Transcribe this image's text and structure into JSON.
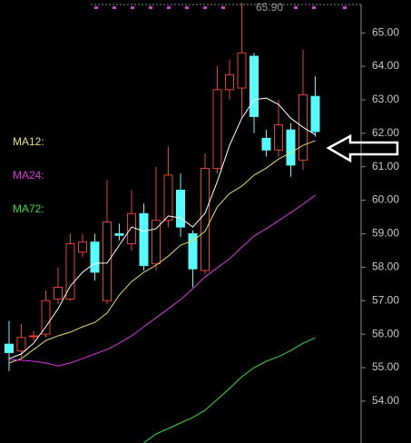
{
  "chart_data": {
    "type": "candlestick",
    "open": [
      55.7,
      55.5,
      55.95,
      56.0,
      57.05,
      57.05,
      58.45,
      58.75,
      57.0,
      59.0,
      58.7,
      59.6,
      58.1,
      59.4,
      60.3,
      59.0,
      57.9,
      60.95,
      63.3,
      63.35,
      64.3,
      61.85,
      61.5,
      62.1,
      61.2,
      63.1
    ],
    "high": [
      56.4,
      56.3,
      56.1,
      57.3,
      58.0,
      59.0,
      59.0,
      59.0,
      60.6,
      59.3,
      60.3,
      59.9,
      61.0,
      61.6,
      60.8,
      59.1,
      61.4,
      64.0,
      64.2,
      65.9,
      64.4,
      62.1,
      63.0,
      62.3,
      64.5,
      63.7
    ],
    "low": [
      54.9,
      55.3,
      55.8,
      55.9,
      56.9,
      57.0,
      58.3,
      57.6,
      56.9,
      58.8,
      58.5,
      57.9,
      57.9,
      59.2,
      58.9,
      57.4,
      57.8,
      60.8,
      63.0,
      62.5,
      62.0,
      61.3,
      61.3,
      60.7,
      60.9,
      61.9
    ],
    "close": [
      55.45,
      55.9,
      55.95,
      57.0,
      57.4,
      58.7,
      58.75,
      57.85,
      59.35,
      58.95,
      59.6,
      58.05,
      59.4,
      60.75,
      59.2,
      57.95,
      60.95,
      63.3,
      63.75,
      64.4,
      62.5,
      61.5,
      62.25,
      61.05,
      63.15,
      62.05
    ],
    "up_color": "#e8422a",
    "down_color": "#54fcfc",
    "series": [
      {
        "color": "#ffffff",
        "values": [
          55.27,
          55.41,
          55.73,
          56.22,
          56.76,
          57.44,
          57.85,
          58.12,
          58.12,
          58.66,
          59.2,
          59.07,
          59.15,
          59.53,
          59.47,
          59.2,
          59.61,
          60.56,
          61.64,
          62.45,
          63.0,
          63.05,
          62.86,
          62.45,
          62.18,
          61.96
        ]
      },
      {
        "name": "MA12:",
        "color": "#e8e05a",
        "values": [
          55.14,
          55.27,
          55.54,
          55.81,
          55.95,
          56.06,
          56.22,
          56.35,
          56.63,
          57.17,
          57.57,
          57.85,
          58.06,
          58.33,
          58.66,
          58.79,
          59.07,
          59.8,
          60.2,
          60.42,
          60.75,
          60.96,
          61.23,
          61.42,
          61.64,
          61.78
        ]
      },
      {
        "name": "MA24:",
        "color": "#e030e0",
        "values": [
          55.24,
          55.22,
          55.19,
          55.14,
          55.05,
          55.14,
          55.27,
          55.41,
          55.54,
          55.73,
          55.95,
          56.22,
          56.49,
          56.76,
          57.03,
          57.36,
          57.71,
          57.98,
          58.25,
          58.6,
          58.93,
          59.15,
          59.39,
          59.63,
          59.88,
          60.15
        ]
      },
      {
        "name": "MA72:",
        "color": "#30e030",
        "values": [
          null,
          null,
          null,
          null,
          null,
          null,
          null,
          null,
          null,
          null,
          null,
          52.76,
          53.02,
          53.18,
          53.35,
          53.51,
          53.73,
          54.05,
          54.38,
          54.73,
          55.0,
          55.19,
          55.33,
          55.51,
          55.73,
          55.89
        ]
      }
    ],
    "annotations": [
      {
        "text": "65.90"
      }
    ],
    "ylim": [
      52.75,
      65.98
    ],
    "yticks": [
      {
        "value": 54,
        "label": "54.00"
      },
      {
        "value": 55,
        "label": "55.00"
      },
      {
        "value": 56,
        "label": "56.00"
      },
      {
        "value": 57,
        "label": "57.00"
      },
      {
        "value": 58,
        "label": "58.00"
      },
      {
        "value": 59,
        "label": "59.00"
      },
      {
        "value": 60,
        "label": "60.00"
      },
      {
        "value": 61,
        "label": "61.00"
      },
      {
        "value": 62,
        "label": "62.00"
      },
      {
        "value": 63,
        "label": "63.00"
      },
      {
        "value": 64,
        "label": "64.00"
      },
      {
        "value": 65,
        "label": "65.00"
      }
    ]
  }
}
